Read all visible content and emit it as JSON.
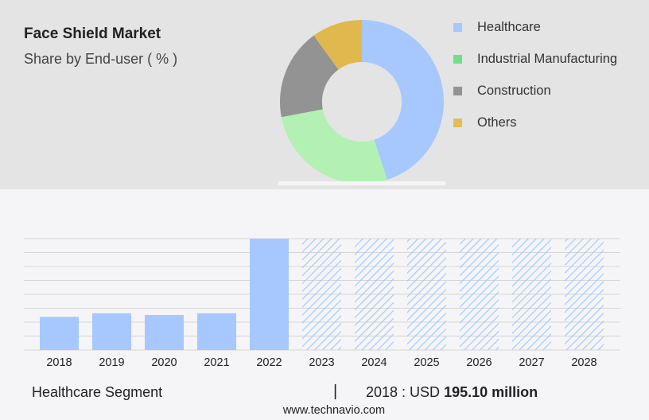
{
  "title": "Face Shield Market",
  "subtitle": "Share by End-user ( % )",
  "footer": {
    "segment": "Healthcare Segment",
    "separator": "|",
    "year_label": "2018 : USD ",
    "value_label": "195.10 million"
  },
  "source": "www.technavio.com",
  "colors": {
    "panel": "#e4e4e4",
    "healthcare": "#a6c8ff",
    "industrial": "#b3f0b3",
    "construction": "#939393",
    "others": "#e0b84e",
    "legend_industrial": "#6ee08a",
    "legend_others": "#e1bd57"
  },
  "chart_data": [
    {
      "type": "pie",
      "donut": true,
      "legend_position": "right",
      "slices": [
        {
          "name": "Healthcare",
          "value": 45
        },
        {
          "name": "Industrial Manufacturing",
          "value": 27
        },
        {
          "name": "Construction",
          "value": 18
        },
        {
          "name": "Others",
          "value": 10
        }
      ]
    },
    {
      "type": "bar",
      "categories": [
        "2018",
        "2019",
        "2020",
        "2021",
        "2022",
        "2023",
        "2024",
        "2025",
        "2026",
        "2027",
        "2028"
      ],
      "values": [
        195.1,
        216,
        206,
        216,
        655,
        655,
        655,
        655,
        655,
        655,
        655
      ],
      "forecast_from": "2023",
      "ylim": [
        0,
        655
      ],
      "grid": true
    }
  ]
}
